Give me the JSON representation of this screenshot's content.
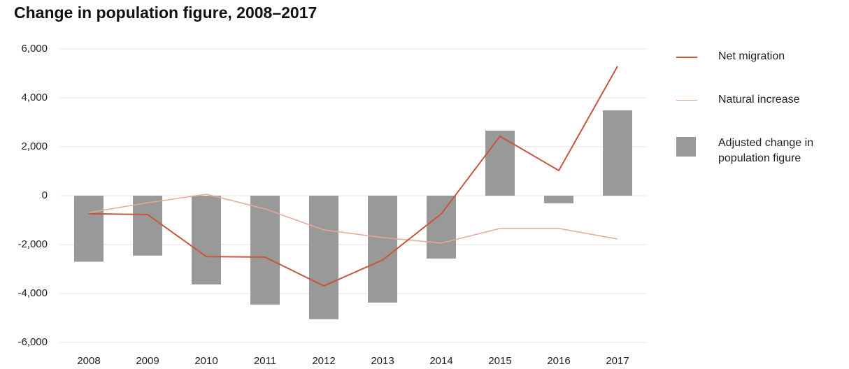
{
  "chart_data": {
    "type": "bar-line",
    "title": "Change in population figure, 2008–2017",
    "categories": [
      "2008",
      "2009",
      "2010",
      "2011",
      "2012",
      "2013",
      "2014",
      "2015",
      "2016",
      "2017"
    ],
    "series": [
      {
        "name": "Net migration",
        "type": "line",
        "color": "#c8553d",
        "values": [
          -740,
          -770,
          -2490,
          -2510,
          -3690,
          -2630,
          -740,
          2430,
          1030,
          5290
        ]
      },
      {
        "name": "Natural increase",
        "type": "line",
        "color": "#e8a898",
        "values": [
          -690,
          -290,
          60,
          -540,
          -1400,
          -1710,
          -1940,
          -1340,
          -1340,
          -1770
        ]
      },
      {
        "name": "Adjusted change in population figure",
        "type": "bar",
        "color": "#999999",
        "values": [
          -2700,
          -2450,
          -3630,
          -4450,
          -5050,
          -4370,
          -2570,
          2660,
          -310,
          3490
        ]
      }
    ],
    "ylim": [
      -6000,
      6000
    ],
    "yticks": [
      {
        "value": -6000,
        "label": "-6,000"
      },
      {
        "value": -4000,
        "label": "-4,000"
      },
      {
        "value": -2000,
        "label": "-2,000"
      },
      0,
      {
        "value": 2000,
        "label": "2,000"
      },
      {
        "value": 4000,
        "label": "4,000"
      },
      {
        "value": 6000,
        "label": "6,000"
      }
    ],
    "grid": true
  }
}
